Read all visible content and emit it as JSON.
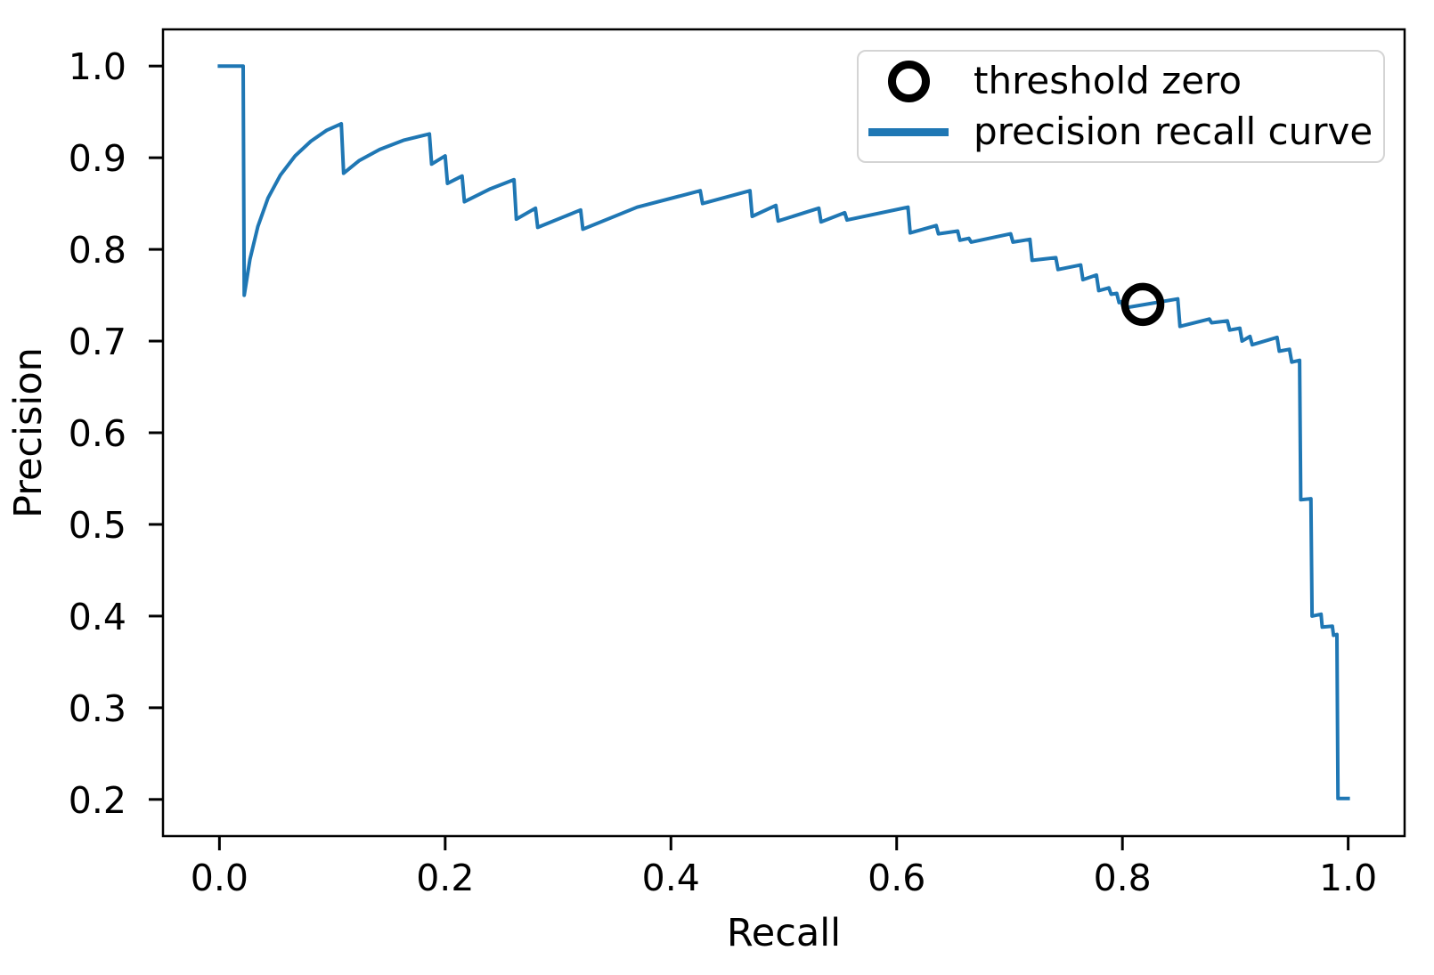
{
  "chart_data": {
    "type": "line",
    "title": "",
    "xlabel": "Recall",
    "ylabel": "Precision",
    "xlim": [
      -0.05,
      1.05
    ],
    "ylim": [
      0.16,
      1.04
    ],
    "grid": false,
    "x_ticks": [
      0.0,
      0.2,
      0.4,
      0.6,
      0.8,
      1.0
    ],
    "x_tick_labels": [
      "0.0",
      "0.2",
      "0.4",
      "0.6",
      "0.8",
      "1.0"
    ],
    "y_ticks": [
      0.2,
      0.3,
      0.4,
      0.5,
      0.6,
      0.7,
      0.8,
      0.9,
      1.0
    ],
    "y_tick_labels": [
      "0.2",
      "0.3",
      "0.4",
      "0.5",
      "0.6",
      "0.7",
      "0.8",
      "0.9",
      "1.0"
    ],
    "legend": {
      "position": "upper right",
      "entries": [
        {
          "label": "threshold zero",
          "marker": "circle",
          "color": "#000000"
        },
        {
          "label": "precision recall curve",
          "marker": "line",
          "color": "#1f77b4"
        }
      ]
    },
    "annotations": [
      {
        "name": "threshold zero",
        "marker": "circle",
        "color": "#000000",
        "recall": 0.818,
        "precision": 0.74
      }
    ],
    "series": [
      {
        "name": "precision recall curve",
        "color": "#1f77b4",
        "line_width": 4,
        "points": [
          [
            0.0,
            1.0
          ],
          [
            0.021,
            1.0
          ],
          [
            0.022,
            0.75
          ],
          [
            0.027,
            0.789
          ],
          [
            0.034,
            0.825
          ],
          [
            0.043,
            0.856
          ],
          [
            0.054,
            0.881
          ],
          [
            0.067,
            0.902
          ],
          [
            0.081,
            0.918
          ],
          [
            0.095,
            0.93
          ],
          [
            0.108,
            0.937
          ],
          [
            0.11,
            0.883
          ],
          [
            0.124,
            0.897
          ],
          [
            0.142,
            0.909
          ],
          [
            0.163,
            0.919
          ],
          [
            0.186,
            0.926
          ],
          [
            0.188,
            0.893
          ],
          [
            0.2,
            0.902
          ],
          [
            0.202,
            0.872
          ],
          [
            0.215,
            0.88
          ],
          [
            0.217,
            0.852
          ],
          [
            0.24,
            0.866
          ],
          [
            0.261,
            0.876
          ],
          [
            0.263,
            0.833
          ],
          [
            0.28,
            0.845
          ],
          [
            0.282,
            0.824
          ],
          [
            0.32,
            0.843
          ],
          [
            0.322,
            0.822
          ],
          [
            0.37,
            0.846
          ],
          [
            0.426,
            0.864
          ],
          [
            0.428,
            0.85
          ],
          [
            0.47,
            0.864
          ],
          [
            0.472,
            0.836
          ],
          [
            0.493,
            0.848
          ],
          [
            0.495,
            0.831
          ],
          [
            0.531,
            0.845
          ],
          [
            0.533,
            0.83
          ],
          [
            0.554,
            0.84
          ],
          [
            0.556,
            0.832
          ],
          [
            0.61,
            0.846
          ],
          [
            0.612,
            0.818
          ],
          [
            0.635,
            0.826
          ],
          [
            0.637,
            0.817
          ],
          [
            0.654,
            0.82
          ],
          [
            0.656,
            0.81
          ],
          [
            0.664,
            0.812
          ],
          [
            0.666,
            0.808
          ],
          [
            0.701,
            0.817
          ],
          [
            0.703,
            0.808
          ],
          [
            0.718,
            0.811
          ],
          [
            0.72,
            0.788
          ],
          [
            0.741,
            0.791
          ],
          [
            0.743,
            0.778
          ],
          [
            0.763,
            0.783
          ],
          [
            0.765,
            0.767
          ],
          [
            0.777,
            0.772
          ],
          [
            0.779,
            0.755
          ],
          [
            0.788,
            0.758
          ],
          [
            0.79,
            0.751
          ],
          [
            0.795,
            0.752
          ],
          [
            0.797,
            0.742
          ],
          [
            0.799,
            0.743
          ],
          [
            0.801,
            0.736
          ],
          [
            0.849,
            0.746
          ],
          [
            0.851,
            0.716
          ],
          [
            0.877,
            0.724
          ],
          [
            0.879,
            0.72
          ],
          [
            0.893,
            0.722
          ],
          [
            0.895,
            0.712
          ],
          [
            0.904,
            0.714
          ],
          [
            0.906,
            0.7
          ],
          [
            0.913,
            0.705
          ],
          [
            0.915,
            0.696
          ],
          [
            0.937,
            0.704
          ],
          [
            0.939,
            0.689
          ],
          [
            0.948,
            0.691
          ],
          [
            0.95,
            0.677
          ],
          [
            0.957,
            0.679
          ],
          [
            0.958,
            0.527
          ],
          [
            0.967,
            0.528
          ],
          [
            0.968,
            0.4
          ],
          [
            0.976,
            0.402
          ],
          [
            0.977,
            0.388
          ],
          [
            0.986,
            0.389
          ],
          [
            0.987,
            0.379
          ],
          [
            0.99,
            0.38
          ],
          [
            0.991,
            0.201
          ],
          [
            1.0,
            0.201
          ]
        ]
      }
    ]
  }
}
